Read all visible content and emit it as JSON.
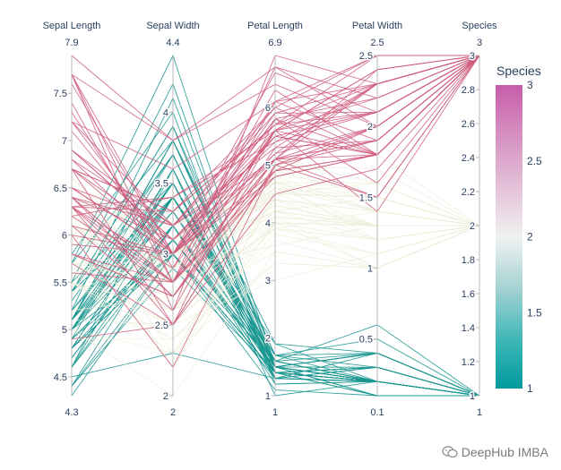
{
  "chart_data": {
    "type": "parallel_coordinates",
    "dataset": "iris",
    "dimensions": [
      {
        "label": "Sepal Length",
        "range": [
          4.3,
          7.9
        ],
        "min_label": "4.3",
        "max_label": "7.9",
        "ticks": [
          4.5,
          5,
          5.5,
          6,
          6.5,
          7,
          7.5
        ],
        "tick_labels": [
          "4.5",
          "5",
          "5.5",
          "6",
          "6.5",
          "7",
          "7.5"
        ]
      },
      {
        "label": "Sepal Width",
        "range": [
          2,
          4.4
        ],
        "min_label": "2",
        "max_label": "4.4",
        "ticks": [
          2,
          2.5,
          3,
          3.5,
          4
        ],
        "tick_labels": [
          "2",
          "2.5",
          "3",
          "3.5",
          "4"
        ]
      },
      {
        "label": "Petal Length",
        "range": [
          1,
          6.9
        ],
        "min_label": "1",
        "max_label": "6.9",
        "ticks": [
          1,
          2,
          3,
          4,
          5,
          6
        ],
        "tick_labels": [
          "1",
          "2",
          "3",
          "4",
          "5",
          "6"
        ]
      },
      {
        "label": "Petal Width",
        "range": [
          0.1,
          2.5
        ],
        "min_label": "0.1",
        "max_label": "2.5",
        "ticks": [
          0.5,
          1,
          1.5,
          2,
          2.5
        ],
        "tick_labels": [
          "0.5",
          "1",
          "1.5",
          "2",
          "2.5"
        ]
      },
      {
        "label": "Species",
        "range": [
          1,
          3
        ],
        "min_label": "1",
        "max_label": "3",
        "ticks": [
          1,
          1.2,
          1.4,
          1.6,
          1.8,
          2,
          2.2,
          2.4,
          2.6,
          2.8,
          3
        ],
        "tick_labels": [
          "1",
          "1.2",
          "1.4",
          "1.6",
          "1.8",
          "2",
          "2.2",
          "2.4",
          "2.6",
          "2.8",
          "3"
        ]
      }
    ],
    "colorbar": {
      "title": "Species",
      "range": [
        1,
        3
      ],
      "ticks": [
        1,
        1.5,
        2,
        2.5,
        3
      ],
      "tick_labels": [
        "1",
        "1.5",
        "2",
        "2.5",
        "3"
      ],
      "colorscale": [
        "#009B9E",
        "#42B7B9",
        "#A7D3D4",
        "#F1F1F1",
        "#E4C1D9",
        "#D691C1",
        "#C75DAB"
      ],
      "colors": {
        "low": "#17958f",
        "mid": "#eeeed9",
        "high": "#cf5a7c"
      }
    },
    "samples": [
      [
        5.1,
        3.5,
        1.4,
        0.2,
        1
      ],
      [
        4.9,
        3.0,
        1.4,
        0.2,
        1
      ],
      [
        4.7,
        3.2,
        1.3,
        0.2,
        1
      ],
      [
        4.6,
        3.1,
        1.5,
        0.2,
        1
      ],
      [
        5.0,
        3.6,
        1.4,
        0.2,
        1
      ],
      [
        5.4,
        3.9,
        1.7,
        0.4,
        1
      ],
      [
        4.6,
        3.4,
        1.4,
        0.3,
        1
      ],
      [
        5.0,
        3.4,
        1.5,
        0.2,
        1
      ],
      [
        4.4,
        2.9,
        1.4,
        0.2,
        1
      ],
      [
        4.9,
        3.1,
        1.5,
        0.1,
        1
      ],
      [
        5.4,
        3.7,
        1.5,
        0.2,
        1
      ],
      [
        4.8,
        3.4,
        1.6,
        0.2,
        1
      ],
      [
        4.8,
        3.0,
        1.4,
        0.1,
        1
      ],
      [
        4.3,
        3.0,
        1.1,
        0.1,
        1
      ],
      [
        5.8,
        4.0,
        1.2,
        0.2,
        1
      ],
      [
        5.7,
        4.4,
        1.5,
        0.4,
        1
      ],
      [
        5.4,
        3.9,
        1.3,
        0.4,
        1
      ],
      [
        5.1,
        3.5,
        1.4,
        0.3,
        1
      ],
      [
        5.7,
        3.8,
        1.7,
        0.3,
        1
      ],
      [
        5.1,
        3.8,
        1.5,
        0.3,
        1
      ],
      [
        5.4,
        3.4,
        1.7,
        0.2,
        1
      ],
      [
        5.1,
        3.7,
        1.5,
        0.4,
        1
      ],
      [
        4.6,
        3.6,
        1.0,
        0.2,
        1
      ],
      [
        5.1,
        3.3,
        1.7,
        0.5,
        1
      ],
      [
        4.8,
        3.4,
        1.9,
        0.2,
        1
      ],
      [
        5.0,
        3.0,
        1.6,
        0.2,
        1
      ],
      [
        5.0,
        3.4,
        1.6,
        0.4,
        1
      ],
      [
        5.2,
        3.5,
        1.5,
        0.2,
        1
      ],
      [
        5.2,
        3.4,
        1.4,
        0.2,
        1
      ],
      [
        4.7,
        3.2,
        1.6,
        0.2,
        1
      ],
      [
        4.8,
        3.1,
        1.6,
        0.2,
        1
      ],
      [
        5.4,
        3.4,
        1.5,
        0.4,
        1
      ],
      [
        5.2,
        4.1,
        1.5,
        0.1,
        1
      ],
      [
        5.5,
        4.2,
        1.4,
        0.2,
        1
      ],
      [
        4.9,
        3.1,
        1.5,
        0.2,
        1
      ],
      [
        5.0,
        3.2,
        1.2,
        0.2,
        1
      ],
      [
        5.5,
        3.5,
        1.3,
        0.2,
        1
      ],
      [
        4.9,
        3.6,
        1.4,
        0.1,
        1
      ],
      [
        4.4,
        3.0,
        1.3,
        0.2,
        1
      ],
      [
        5.1,
        3.4,
        1.5,
        0.2,
        1
      ],
      [
        5.0,
        3.5,
        1.3,
        0.3,
        1
      ],
      [
        4.5,
        2.3,
        1.3,
        0.3,
        1
      ],
      [
        4.4,
        3.2,
        1.3,
        0.2,
        1
      ],
      [
        5.0,
        3.5,
        1.6,
        0.6,
        1
      ],
      [
        5.1,
        3.8,
        1.9,
        0.4,
        1
      ],
      [
        4.8,
        3.0,
        1.4,
        0.3,
        1
      ],
      [
        5.1,
        3.8,
        1.6,
        0.2,
        1
      ],
      [
        4.6,
        3.2,
        1.4,
        0.2,
        1
      ],
      [
        5.3,
        3.7,
        1.5,
        0.2,
        1
      ],
      [
        5.0,
        3.3,
        1.4,
        0.2,
        1
      ],
      [
        7.0,
        3.2,
        4.7,
        1.4,
        2
      ],
      [
        6.4,
        3.2,
        4.5,
        1.5,
        2
      ],
      [
        6.9,
        3.1,
        4.9,
        1.5,
        2
      ],
      [
        5.5,
        2.3,
        4.0,
        1.3,
        2
      ],
      [
        6.5,
        2.8,
        4.6,
        1.5,
        2
      ],
      [
        5.7,
        2.8,
        4.5,
        1.3,
        2
      ],
      [
        6.3,
        3.3,
        4.7,
        1.6,
        2
      ],
      [
        4.9,
        2.4,
        3.3,
        1.0,
        2
      ],
      [
        6.6,
        2.9,
        4.6,
        1.3,
        2
      ],
      [
        5.2,
        2.7,
        3.9,
        1.4,
        2
      ],
      [
        5.0,
        2.0,
        3.5,
        1.0,
        2
      ],
      [
        5.9,
        3.0,
        4.2,
        1.5,
        2
      ],
      [
        6.0,
        2.2,
        4.0,
        1.0,
        2
      ],
      [
        6.1,
        2.9,
        4.7,
        1.4,
        2
      ],
      [
        5.6,
        2.9,
        3.6,
        1.3,
        2
      ],
      [
        6.7,
        3.1,
        4.4,
        1.4,
        2
      ],
      [
        5.6,
        3.0,
        4.5,
        1.5,
        2
      ],
      [
        5.8,
        2.7,
        4.1,
        1.0,
        2
      ],
      [
        6.2,
        2.2,
        4.5,
        1.5,
        2
      ],
      [
        5.6,
        2.5,
        3.9,
        1.1,
        2
      ],
      [
        5.9,
        3.2,
        4.8,
        1.8,
        2
      ],
      [
        6.1,
        2.8,
        4.0,
        1.3,
        2
      ],
      [
        6.3,
        2.5,
        4.9,
        1.5,
        2
      ],
      [
        6.1,
        2.8,
        4.7,
        1.2,
        2
      ],
      [
        6.4,
        2.9,
        4.3,
        1.3,
        2
      ],
      [
        6.6,
        3.0,
        4.4,
        1.4,
        2
      ],
      [
        6.8,
        2.8,
        4.8,
        1.4,
        2
      ],
      [
        6.7,
        3.0,
        5.0,
        1.7,
        2
      ],
      [
        6.0,
        2.9,
        4.5,
        1.5,
        2
      ],
      [
        5.7,
        2.6,
        3.5,
        1.0,
        2
      ],
      [
        5.5,
        2.4,
        3.8,
        1.1,
        2
      ],
      [
        5.5,
        2.4,
        3.7,
        1.0,
        2
      ],
      [
        5.8,
        2.7,
        3.9,
        1.2,
        2
      ],
      [
        6.0,
        2.7,
        5.1,
        1.6,
        2
      ],
      [
        5.4,
        3.0,
        4.5,
        1.5,
        2
      ],
      [
        6.0,
        3.4,
        4.5,
        1.6,
        2
      ],
      [
        6.7,
        3.1,
        4.7,
        1.5,
        2
      ],
      [
        6.3,
        2.3,
        4.4,
        1.3,
        2
      ],
      [
        5.6,
        3.0,
        4.1,
        1.3,
        2
      ],
      [
        5.5,
        2.5,
        4.0,
        1.3,
        2
      ],
      [
        5.5,
        2.6,
        4.4,
        1.2,
        2
      ],
      [
        6.1,
        3.0,
        4.6,
        1.4,
        2
      ],
      [
        5.8,
        2.6,
        4.0,
        1.2,
        2
      ],
      [
        5.0,
        2.3,
        3.3,
        1.0,
        2
      ],
      [
        5.6,
        2.7,
        4.2,
        1.3,
        2
      ],
      [
        5.7,
        3.0,
        4.2,
        1.2,
        2
      ],
      [
        5.7,
        2.9,
        4.2,
        1.3,
        2
      ],
      [
        6.2,
        2.9,
        4.3,
        1.3,
        2
      ],
      [
        5.1,
        2.5,
        3.0,
        1.1,
        2
      ],
      [
        5.7,
        2.8,
        4.1,
        1.3,
        2
      ],
      [
        6.3,
        3.3,
        6.0,
        2.5,
        3
      ],
      [
        5.8,
        2.7,
        5.1,
        1.9,
        3
      ],
      [
        7.1,
        3.0,
        5.9,
        2.1,
        3
      ],
      [
        6.3,
        2.9,
        5.6,
        1.8,
        3
      ],
      [
        6.5,
        3.0,
        5.8,
        2.2,
        3
      ],
      [
        7.6,
        3.0,
        6.6,
        2.1,
        3
      ],
      [
        4.9,
        2.5,
        4.5,
        1.7,
        3
      ],
      [
        7.3,
        2.9,
        6.3,
        1.8,
        3
      ],
      [
        6.7,
        2.5,
        5.8,
        1.8,
        3
      ],
      [
        7.2,
        3.6,
        6.1,
        2.5,
        3
      ],
      [
        6.5,
        3.2,
        5.1,
        2.0,
        3
      ],
      [
        6.4,
        2.7,
        5.3,
        1.9,
        3
      ],
      [
        6.8,
        3.0,
        5.5,
        2.1,
        3
      ],
      [
        5.7,
        2.5,
        5.0,
        2.0,
        3
      ],
      [
        5.8,
        2.8,
        5.1,
        2.4,
        3
      ],
      [
        6.4,
        3.2,
        5.3,
        2.3,
        3
      ],
      [
        6.5,
        3.0,
        5.5,
        1.8,
        3
      ],
      [
        7.7,
        3.8,
        6.7,
        2.2,
        3
      ],
      [
        7.7,
        2.6,
        6.9,
        2.3,
        3
      ],
      [
        6.0,
        2.2,
        5.0,
        1.5,
        3
      ],
      [
        6.9,
        3.2,
        5.7,
        2.3,
        3
      ],
      [
        5.6,
        2.8,
        4.9,
        2.0,
        3
      ],
      [
        7.7,
        2.8,
        6.7,
        2.0,
        3
      ],
      [
        6.3,
        2.7,
        4.9,
        1.8,
        3
      ],
      [
        6.7,
        3.3,
        5.7,
        2.1,
        3
      ],
      [
        7.2,
        3.2,
        6.0,
        1.8,
        3
      ],
      [
        6.2,
        2.8,
        4.8,
        1.8,
        3
      ],
      [
        6.1,
        3.0,
        4.9,
        1.8,
        3
      ],
      [
        6.4,
        2.8,
        5.6,
        2.1,
        3
      ],
      [
        7.2,
        3.0,
        5.8,
        1.6,
        3
      ],
      [
        7.4,
        2.8,
        6.1,
        1.9,
        3
      ],
      [
        7.9,
        3.8,
        6.4,
        2.0,
        3
      ],
      [
        6.4,
        2.8,
        5.6,
        2.2,
        3
      ],
      [
        6.3,
        2.8,
        5.1,
        1.5,
        3
      ],
      [
        6.1,
        2.6,
        5.6,
        1.4,
        3
      ],
      [
        7.7,
        3.0,
        6.1,
        2.3,
        3
      ],
      [
        6.3,
        3.4,
        5.6,
        2.4,
        3
      ],
      [
        6.4,
        3.1,
        5.5,
        1.8,
        3
      ],
      [
        6.0,
        3.0,
        4.8,
        1.8,
        3
      ],
      [
        6.9,
        3.1,
        5.4,
        2.1,
        3
      ],
      [
        6.7,
        3.1,
        5.6,
        2.4,
        3
      ],
      [
        6.9,
        3.1,
        5.1,
        2.3,
        3
      ],
      [
        5.8,
        2.7,
        5.1,
        1.9,
        3
      ],
      [
        6.8,
        3.2,
        5.9,
        2.3,
        3
      ],
      [
        6.7,
        3.3,
        5.7,
        2.5,
        3
      ],
      [
        6.7,
        3.0,
        5.2,
        2.3,
        3
      ],
      [
        6.3,
        2.5,
        5.0,
        1.9,
        3
      ],
      [
        6.5,
        3.0,
        5.2,
        2.0,
        3
      ],
      [
        6.2,
        3.4,
        5.4,
        2.3,
        3
      ],
      [
        5.9,
        3.0,
        5.1,
        1.8,
        3
      ]
    ]
  },
  "watermark": {
    "text": "DeepHub IMBA",
    "icon": "wechat-icon"
  }
}
